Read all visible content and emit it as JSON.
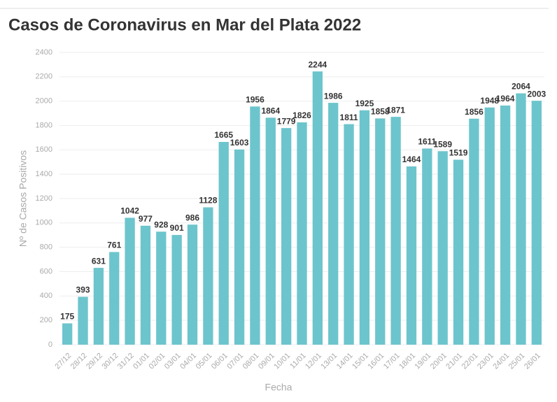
{
  "chart_data": {
    "type": "bar",
    "title": "Casos de Coronavirus en Mar del Plata 2022",
    "x_label": "Fecha",
    "y_label": "Nº de Casos Positivos",
    "categories": [
      "27/12",
      "28/12",
      "29/12",
      "30/12",
      "31/12",
      "01/01",
      "02/01",
      "03/01",
      "04/01",
      "05/01",
      "06/01",
      "07/01",
      "08/01",
      "09/01",
      "10/01",
      "11/01",
      "12/01",
      "13/01",
      "14/01",
      "15/01",
      "16/01",
      "17/01",
      "18/01",
      "19/01",
      "20/01",
      "21/01",
      "22/01",
      "23/01",
      "24/01",
      "25/01",
      "26/01"
    ],
    "values": [
      175,
      393,
      631,
      761,
      1042,
      977,
      928,
      901,
      986,
      1128,
      1665,
      1603,
      1956,
      1864,
      1779,
      1826,
      2244,
      1986,
      1811,
      1925,
      1858,
      1871,
      1464,
      1611,
      1589,
      1519,
      1856,
      1948,
      1964,
      2064,
      2003
    ],
    "color": "#6cc5cc",
    "ylim": [
      0,
      2400
    ],
    "yticks": [
      0,
      200,
      400,
      600,
      800,
      1000,
      1200,
      1400,
      1600,
      1800,
      2000,
      2200,
      2400
    ],
    "grid": true
  }
}
